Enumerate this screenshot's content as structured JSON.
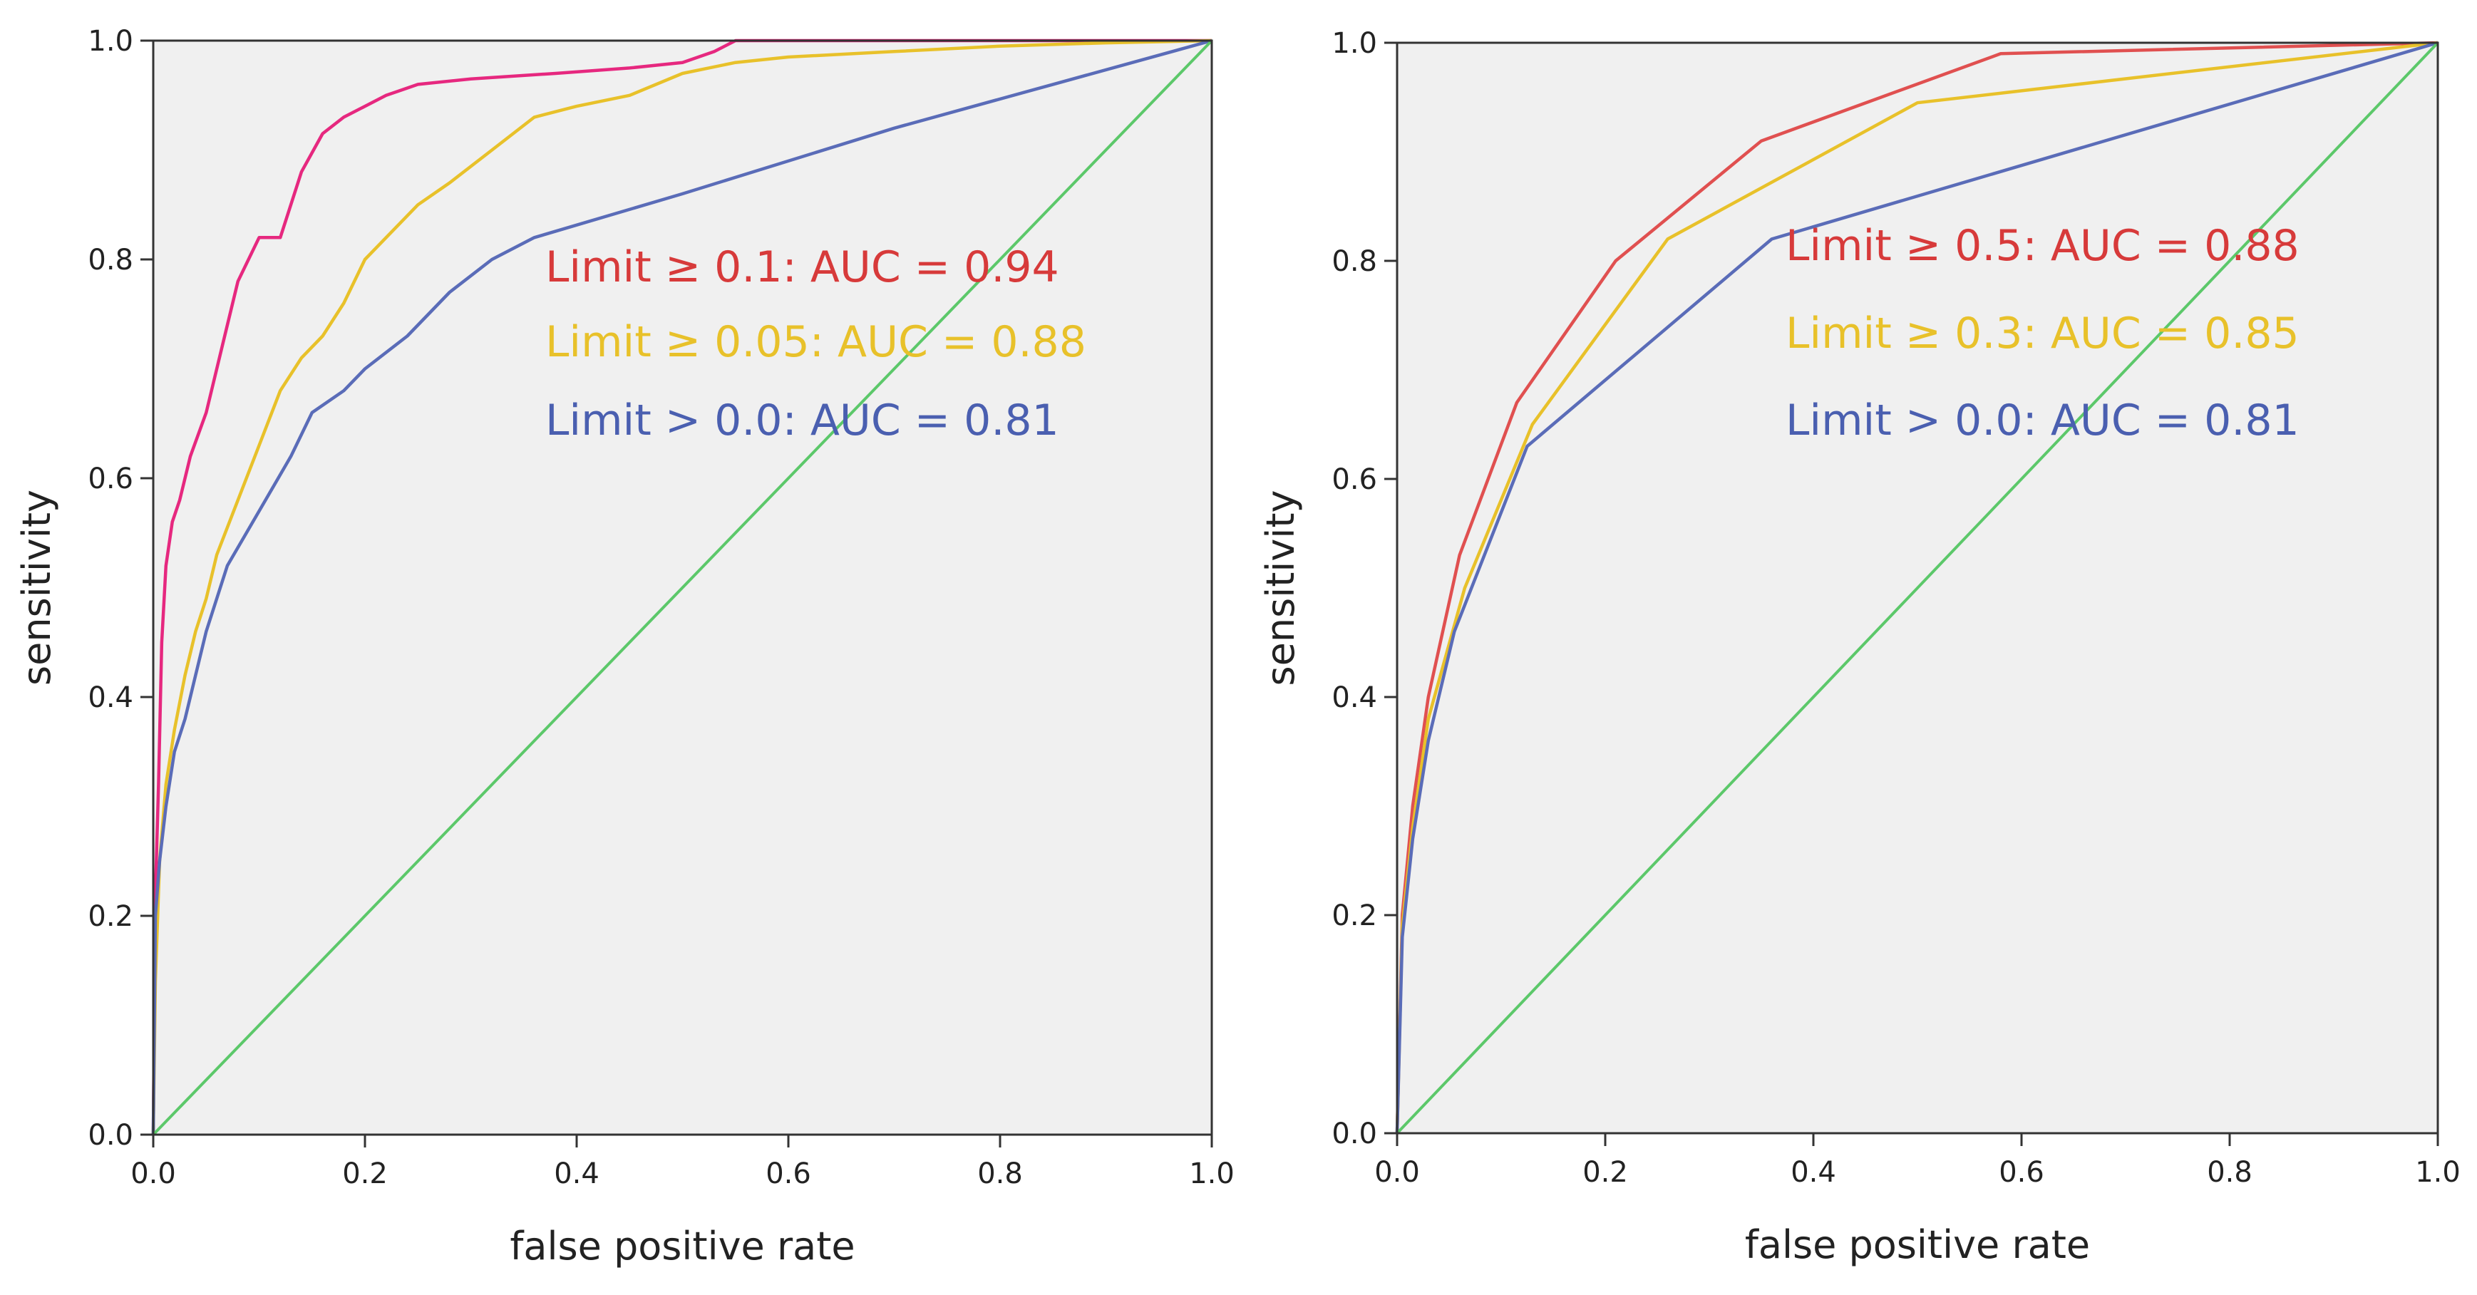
{
  "chart_data": [
    {
      "type": "line",
      "title": "",
      "xlabel": "false positive rate",
      "ylabel": "sensitivity",
      "xlim": [
        0,
        1
      ],
      "ylim": [
        0,
        1
      ],
      "x_ticks": [
        "0.0",
        "0.2",
        "0.4",
        "0.6",
        "0.8",
        "1.0"
      ],
      "y_ticks": [
        "0.0",
        "0.2",
        "0.4",
        "0.6",
        "0.8",
        "1.0"
      ],
      "legend_position": "center",
      "series": [
        {
          "name": "Limit ≥ 0.1: AUC = 0.94",
          "color": "#e6287f",
          "label_color": "#d73a3a",
          "x": [
            0,
            0.002,
            0.005,
            0.008,
            0.012,
            0.018,
            0.025,
            0.035,
            0.05,
            0.065,
            0.08,
            0.1,
            0.12,
            0.14,
            0.16,
            0.18,
            0.2,
            0.22,
            0.25,
            0.3,
            0.38,
            0.45,
            0.5,
            0.53,
            0.55,
            0.6,
            0.7,
            0.8,
            0.9,
            1.0
          ],
          "y": [
            0,
            0.22,
            0.32,
            0.45,
            0.52,
            0.56,
            0.58,
            0.62,
            0.66,
            0.72,
            0.78,
            0.82,
            0.82,
            0.88,
            0.915,
            0.93,
            0.94,
            0.95,
            0.96,
            0.965,
            0.97,
            0.975,
            0.98,
            0.99,
            1.0,
            1.0,
            1.0,
            1.0,
            1.0,
            1.0
          ]
        },
        {
          "name": "Limit ≥ 0.05: AUC = 0.88",
          "color": "#e8c12a",
          "label_color": "#e8c12a",
          "x": [
            0,
            0.002,
            0.006,
            0.012,
            0.02,
            0.03,
            0.04,
            0.05,
            0.06,
            0.08,
            0.1,
            0.12,
            0.14,
            0.16,
            0.18,
            0.2,
            0.22,
            0.25,
            0.28,
            0.32,
            0.36,
            0.4,
            0.45,
            0.5,
            0.55,
            0.6,
            0.7,
            0.8,
            0.9,
            1.0
          ],
          "y": [
            0,
            0.14,
            0.25,
            0.32,
            0.37,
            0.42,
            0.46,
            0.49,
            0.53,
            0.58,
            0.63,
            0.68,
            0.71,
            0.73,
            0.76,
            0.8,
            0.82,
            0.85,
            0.87,
            0.9,
            0.93,
            0.94,
            0.95,
            0.97,
            0.98,
            0.985,
            0.99,
            0.995,
            0.998,
            1.0
          ]
        },
        {
          "name": "Limit > 0.0: AUC = 0.81",
          "color": "#5a6cb8",
          "label_color": "#4a5fb0",
          "x": [
            0,
            0.002,
            0.006,
            0.012,
            0.02,
            0.03,
            0.04,
            0.05,
            0.07,
            0.1,
            0.13,
            0.15,
            0.18,
            0.2,
            0.24,
            0.28,
            0.32,
            0.36,
            0.5,
            0.7,
            0.85,
            1.0
          ],
          "y": [
            0,
            0.2,
            0.25,
            0.3,
            0.35,
            0.38,
            0.42,
            0.46,
            0.52,
            0.57,
            0.62,
            0.66,
            0.68,
            0.7,
            0.73,
            0.77,
            0.8,
            0.82,
            0.86,
            0.92,
            0.96,
            1.0
          ]
        },
        {
          "name": "reference",
          "color": "#5cc86a",
          "x": [
            0,
            1
          ],
          "y": [
            0,
            1
          ]
        }
      ]
    },
    {
      "type": "line",
      "title": "",
      "xlabel": "false positive rate",
      "ylabel": "sensitivity",
      "xlim": [
        0,
        1
      ],
      "ylim": [
        0,
        1
      ],
      "x_ticks": [
        "0.0",
        "0.2",
        "0.4",
        "0.6",
        "0.8",
        "1.0"
      ],
      "y_ticks": [
        "0.0",
        "0.2",
        "0.4",
        "0.6",
        "0.8",
        "1.0"
      ],
      "legend_position": "center",
      "series": [
        {
          "name": "Limit ≥ 0.5: AUC = 0.88",
          "color": "#e05050",
          "label_color": "#d73a3a",
          "x": [
            0,
            0.005,
            0.015,
            0.03,
            0.06,
            0.115,
            0.21,
            0.35,
            0.58,
            1.0
          ],
          "y": [
            0,
            0.2,
            0.3,
            0.4,
            0.53,
            0.67,
            0.8,
            0.91,
            0.99,
            1.0
          ]
        },
        {
          "name": "Limit ≥ 0.3: AUC = 0.85",
          "color": "#e8c12a",
          "label_color": "#e8c12a",
          "x": [
            0,
            0.005,
            0.015,
            0.03,
            0.065,
            0.13,
            0.26,
            0.5,
            1.0
          ],
          "y": [
            0,
            0.19,
            0.28,
            0.38,
            0.5,
            0.65,
            0.82,
            0.945,
            1.0
          ]
        },
        {
          "name": "Limit > 0.0: AUC = 0.81",
          "color": "#5a6cb8",
          "label_color": "#4a5fb0",
          "x": [
            0,
            0.005,
            0.015,
            0.03,
            0.055,
            0.125,
            0.36,
            1.0
          ],
          "y": [
            0,
            0.18,
            0.27,
            0.36,
            0.46,
            0.63,
            0.82,
            1.0
          ]
        },
        {
          "name": "reference",
          "color": "#5cc86a",
          "x": [
            0,
            1
          ],
          "y": [
            0,
            1
          ]
        }
      ]
    }
  ]
}
